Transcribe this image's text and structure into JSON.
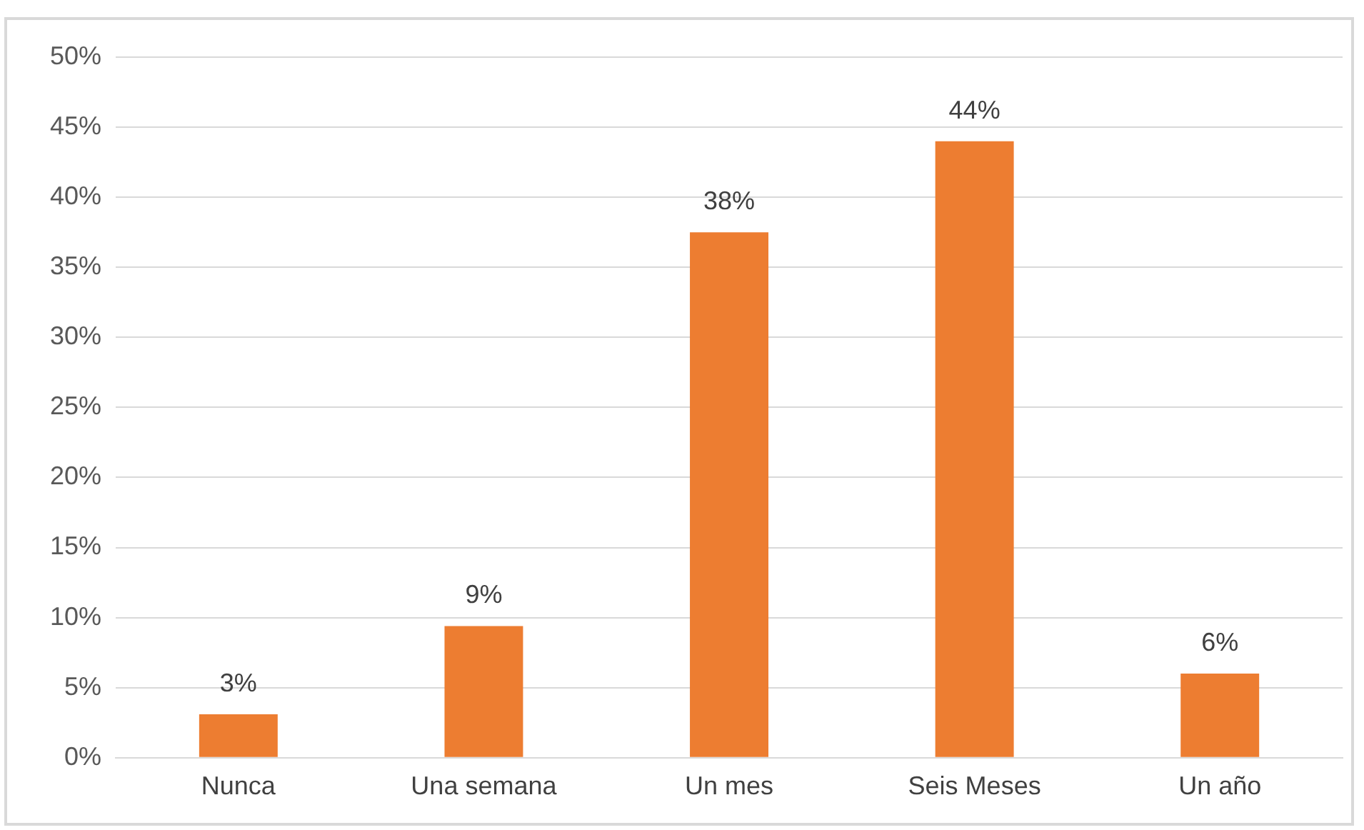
{
  "chart_data": {
    "type": "bar",
    "categories": [
      "Nunca",
      "Una semana",
      "Un mes",
      "Seis Meses",
      "Un año"
    ],
    "values": [
      3.1,
      9.4,
      37.5,
      44,
      6
    ],
    "value_labels": [
      "3%",
      "9%",
      "38%",
      "44%",
      "6%"
    ],
    "color": "#ed7d31",
    "ylim": [
      0,
      50
    ],
    "yticks": [
      {
        "value": 0,
        "label": "0%"
      },
      {
        "value": 5,
        "label": "5%"
      },
      {
        "value": 10,
        "label": "10%"
      },
      {
        "value": 15,
        "label": "15%"
      },
      {
        "value": 20,
        "label": "20%"
      },
      {
        "value": 25,
        "label": "25%"
      },
      {
        "value": 30,
        "label": "30%"
      },
      {
        "value": 35,
        "label": "35%"
      },
      {
        "value": 40,
        "label": "40%"
      },
      {
        "value": 45,
        "label": "45%"
      },
      {
        "value": 50,
        "label": "50%"
      }
    ],
    "grid": "y"
  }
}
